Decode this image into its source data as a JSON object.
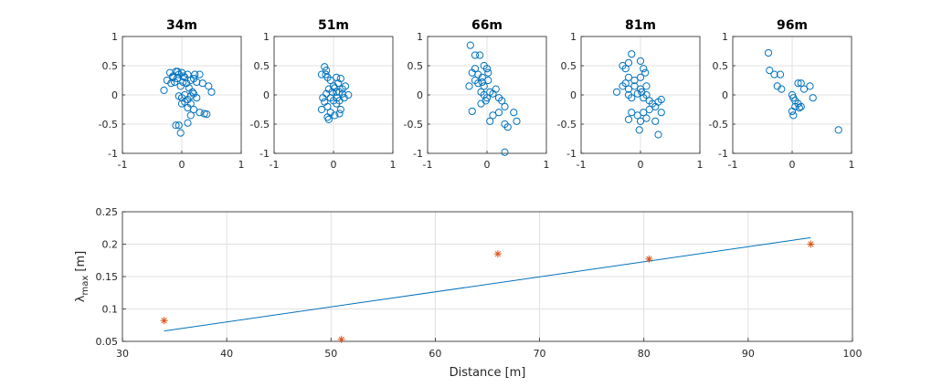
{
  "chart_data": [
    {
      "type": "scatter",
      "title": "34m",
      "xlim": [
        -1,
        1
      ],
      "ylim": [
        -1,
        1
      ],
      "xticks": [
        "-1",
        "0",
        "1"
      ],
      "yticks": [
        "1",
        "0.5",
        "0",
        "-0.5",
        "-1"
      ],
      "grid": true,
      "marker": "circle",
      "color": "#0072BD",
      "points": [
        [
          -0.25,
          0.25
        ],
        [
          -0.2,
          0.38
        ],
        [
          -0.15,
          0.32
        ],
        [
          -0.12,
          0.22
        ],
        [
          -0.1,
          0.4
        ],
        [
          -0.05,
          0.35
        ],
        [
          0,
          0.38
        ],
        [
          0.05,
          0.3
        ],
        [
          0.1,
          0.35
        ],
        [
          0.15,
          0.25
        ],
        [
          0.2,
          0.28
        ],
        [
          0.25,
          0.22
        ],
        [
          0.3,
          0.35
        ],
        [
          0.35,
          0.2
        ],
        [
          -0.3,
          0.08
        ],
        [
          0.45,
          0.15
        ],
        [
          0.5,
          0.05
        ],
        [
          -0.08,
          0.28
        ],
        [
          0.02,
          0.22
        ],
        [
          -0.02,
          0.15
        ],
        [
          0.08,
          0.2
        ],
        [
          0.12,
          0.12
        ],
        [
          0.18,
          0.05
        ],
        [
          0.05,
          0
        ],
        [
          0,
          -0.05
        ],
        [
          -0.05,
          -0.02
        ],
        [
          0.1,
          -0.08
        ],
        [
          0.15,
          -0.02
        ],
        [
          0.2,
          0.02
        ],
        [
          0.25,
          -0.05
        ],
        [
          0.05,
          -0.12
        ],
        [
          0,
          -0.15
        ],
        [
          0.1,
          -0.22
        ],
        [
          0.15,
          -0.15
        ],
        [
          0.2,
          -0.25
        ],
        [
          0.3,
          -0.3
        ],
        [
          0.38,
          -0.32
        ],
        [
          0.42,
          -0.33
        ],
        [
          0.15,
          -0.35
        ],
        [
          0.1,
          -0.48
        ],
        [
          -0.05,
          -0.52
        ],
        [
          -0.02,
          -0.65
        ],
        [
          -0.1,
          -0.52
        ],
        [
          -0.15,
          0.3
        ],
        [
          -0.18,
          0.2
        ],
        [
          0.22,
          0.35
        ],
        [
          -0.07,
          0.4
        ],
        [
          0.03,
          0.32
        ]
      ]
    },
    {
      "type": "scatter",
      "title": "51m",
      "xlim": [
        -1,
        1
      ],
      "ylim": [
        -1,
        1
      ],
      "xticks": [
        "-1",
        "0",
        "1"
      ],
      "yticks": [
        "1",
        "0.5",
        "0",
        "-0.5",
        "-1"
      ],
      "grid": true,
      "marker": "circle",
      "color": "#0072BD",
      "points": [
        [
          -0.15,
          0.48
        ],
        [
          -0.12,
          0.42
        ],
        [
          -0.2,
          0.35
        ],
        [
          -0.1,
          0.3
        ],
        [
          -0.05,
          0.25
        ],
        [
          0.05,
          0.3
        ],
        [
          0.12,
          0.28
        ],
        [
          0.2,
          0.15
        ],
        [
          -0.08,
          0.1
        ],
        [
          0,
          0.15
        ],
        [
          0.05,
          0.05
        ],
        [
          0.1,
          0.05
        ],
        [
          0.15,
          0.02
        ],
        [
          0.25,
          0
        ],
        [
          -0.12,
          0.02
        ],
        [
          -0.05,
          -0.05
        ],
        [
          0,
          -0.1
        ],
        [
          0.05,
          -0.15
        ],
        [
          0.1,
          -0.1
        ],
        [
          -0.18,
          -0.05
        ],
        [
          -0.15,
          -0.12
        ],
        [
          -0.1,
          -0.2
        ],
        [
          -0.2,
          -0.25
        ],
        [
          -0.05,
          -0.3
        ],
        [
          0.02,
          -0.35
        ],
        [
          0.1,
          -0.32
        ],
        [
          -0.08,
          -0.42
        ],
        [
          -0.1,
          -0.38
        ],
        [
          0.12,
          -0.25
        ],
        [
          0.08,
          0.2
        ],
        [
          0.15,
          0.1
        ],
        [
          -0.02,
          0.05
        ],
        [
          0.02,
          0.12
        ],
        [
          0.18,
          -0.05
        ],
        [
          -0.13,
          0.35
        ],
        [
          0.06,
          -0.05
        ]
      ]
    },
    {
      "type": "scatter",
      "title": "66m",
      "xlim": [
        -1,
        1
      ],
      "ylim": [
        -1,
        1
      ],
      "xticks": [
        "-1",
        "0",
        "1"
      ],
      "yticks": [
        "1",
        "0.5",
        "0",
        "-0.5",
        "-1"
      ],
      "grid": true,
      "marker": "circle",
      "color": "#0072BD",
      "points": [
        [
          -0.28,
          0.85
        ],
        [
          -0.2,
          0.68
        ],
        [
          -0.12,
          0.68
        ],
        [
          -0.05,
          0.5
        ],
        [
          0,
          0.45
        ],
        [
          -0.2,
          0.45
        ],
        [
          -0.25,
          0.38
        ],
        [
          -0.15,
          0.35
        ],
        [
          -0.08,
          0.3
        ],
        [
          0.02,
          0.38
        ],
        [
          -0.2,
          0.25
        ],
        [
          -0.15,
          0.2
        ],
        [
          -0.05,
          0.15
        ],
        [
          0.05,
          0.05
        ],
        [
          0.15,
          0.1
        ],
        [
          -0.3,
          0.15
        ],
        [
          -0.1,
          0.05
        ],
        [
          -0.05,
          0
        ],
        [
          0,
          -0.05
        ],
        [
          0.1,
          0.02
        ],
        [
          0.2,
          -0.05
        ],
        [
          0.25,
          -0.1
        ],
        [
          0.3,
          -0.2
        ],
        [
          0.2,
          -0.3
        ],
        [
          0.1,
          -0.35
        ],
        [
          0.05,
          -0.45
        ],
        [
          0.3,
          -0.5
        ],
        [
          0.35,
          -0.55
        ],
        [
          0.45,
          -0.3
        ],
        [
          0.5,
          -0.45
        ],
        [
          -0.25,
          -0.28
        ],
        [
          -0.1,
          -0.15
        ],
        [
          0.3,
          -0.98
        ],
        [
          -0.08,
          0.22
        ],
        [
          0.02,
          0.25
        ],
        [
          -0.02,
          -0.1
        ]
      ]
    },
    {
      "type": "scatter",
      "title": "81m",
      "xlim": [
        -1,
        1
      ],
      "ylim": [
        -1,
        1
      ],
      "xticks": [
        "-1",
        "0",
        "1"
      ],
      "yticks": [
        "1",
        "0.5",
        "0",
        "-0.5",
        "-1"
      ],
      "grid": true,
      "marker": "circle",
      "color": "#0072BD",
      "points": [
        [
          -0.15,
          0.7
        ],
        [
          -0.2,
          0.55
        ],
        [
          -0.3,
          0.5
        ],
        [
          -0.25,
          0.45
        ],
        [
          0,
          0.58
        ],
        [
          0.05,
          0.45
        ],
        [
          0.08,
          0.38
        ],
        [
          -0.2,
          0.3
        ],
        [
          -0.1,
          0.25
        ],
        [
          0,
          0.3
        ],
        [
          -0.3,
          0.15
        ],
        [
          -0.2,
          0.1
        ],
        [
          -0.1,
          0.15
        ],
        [
          0,
          0.1
        ],
        [
          0.1,
          0.15
        ],
        [
          -0.4,
          0.05
        ],
        [
          -0.2,
          0
        ],
        [
          -0.15,
          -0.05
        ],
        [
          -0.05,
          0.02
        ],
        [
          0.05,
          -0.05
        ],
        [
          0.1,
          0
        ],
        [
          0.15,
          -0.1
        ],
        [
          0.2,
          -0.15
        ],
        [
          0.3,
          -0.12
        ],
        [
          0.35,
          -0.08
        ],
        [
          0.25,
          -0.2
        ],
        [
          0.15,
          -0.25
        ],
        [
          0.05,
          -0.3
        ],
        [
          -0.05,
          -0.35
        ],
        [
          -0.15,
          -0.3
        ],
        [
          0.1,
          -0.4
        ],
        [
          0,
          -0.45
        ],
        [
          -0.2,
          -0.42
        ],
        [
          0.35,
          -0.3
        ],
        [
          0.25,
          -0.45
        ],
        [
          -0.02,
          -0.6
        ],
        [
          0.3,
          -0.68
        ],
        [
          -0.25,
          0.2
        ],
        [
          0.02,
          0.05
        ]
      ]
    },
    {
      "type": "scatter",
      "title": "96m",
      "xlim": [
        -1,
        1
      ],
      "ylim": [
        -1,
        1
      ],
      "xticks": [
        "-1",
        "0",
        "1"
      ],
      "yticks": [
        "1",
        "0.5",
        "0",
        "-0.5",
        "-1"
      ],
      "grid": true,
      "marker": "circle",
      "color": "#0072BD",
      "points": [
        [
          -0.4,
          0.72
        ],
        [
          -0.38,
          0.42
        ],
        [
          -0.3,
          0.35
        ],
        [
          -0.2,
          0.35
        ],
        [
          -0.25,
          0.15
        ],
        [
          -0.18,
          0.1
        ],
        [
          0.1,
          0.2
        ],
        [
          0.15,
          0.2
        ],
        [
          0.2,
          0.1
        ],
        [
          0.3,
          0.15
        ],
        [
          0.35,
          -0.05
        ],
        [
          0,
          0
        ],
        [
          0.02,
          -0.05
        ],
        [
          0.05,
          -0.1
        ],
        [
          0.1,
          -0.15
        ],
        [
          0.15,
          -0.2
        ],
        [
          0.05,
          -0.2
        ],
        [
          0,
          -0.28
        ],
        [
          0.02,
          -0.35
        ],
        [
          0.12,
          -0.22
        ],
        [
          0.78,
          -0.6
        ]
      ]
    },
    {
      "type": "line",
      "xlabel": "Distance [m]",
      "ylabel_main": "λ",
      "ylabel_sub": "max",
      "ylabel_unit": " [m]",
      "xlim": [
        30,
        100
      ],
      "ylim": [
        0.05,
        0.25
      ],
      "xticks": [
        "30",
        "40",
        "50",
        "60",
        "70",
        "80",
        "90",
        "100"
      ],
      "yticks": [
        "0.25",
        "0.2",
        "0.15",
        "0.1",
        "0.05"
      ],
      "grid": true,
      "series": [
        {
          "style": "line",
          "color": "#0072BD",
          "x": [
            34,
            96
          ],
          "y": [
            0.066,
            0.21
          ]
        },
        {
          "style": "marker-asterisk",
          "color": "#D95319",
          "x": [
            34,
            51,
            66,
            80.5,
            96
          ],
          "y": [
            0.082,
            0.053,
            0.185,
            0.177,
            0.2
          ]
        }
      ]
    }
  ]
}
